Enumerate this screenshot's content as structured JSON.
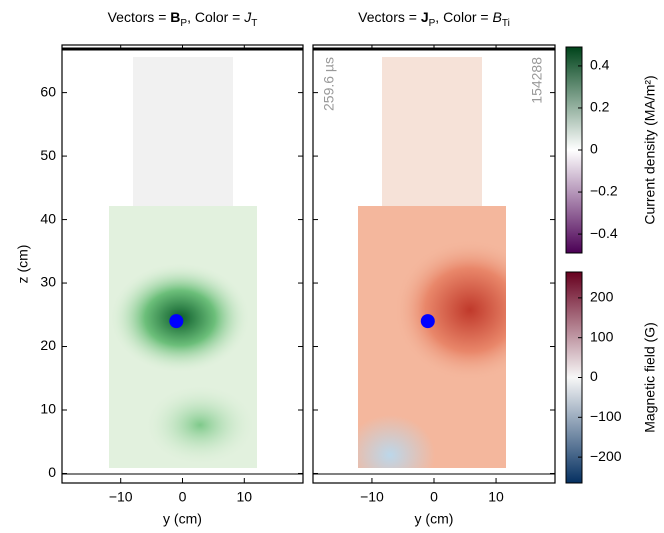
{
  "chart_data": [
    {
      "type": "scatter",
      "title_parts": [
        "Vectors = ",
        "B",
        "P",
        ", Color = ",
        "J",
        "T"
      ],
      "x_label": "y (cm)",
      "y_label": "z (cm)",
      "x": [
        -1
      ],
      "values": [
        24
      ],
      "color": "#0000ff",
      "xlim": [
        -19.5,
        19.5
      ],
      "ylim": [
        -1.5,
        67.5
      ],
      "xticks": [
        {
          "value": -10,
          "label": "−10"
        },
        0,
        10
      ],
      "yticks": [
        0,
        10,
        20,
        30,
        40,
        50,
        60
      ]
    },
    {
      "type": "scatter",
      "title_parts": [
        "Vectors = ",
        "J",
        "P",
        ", Color = ",
        "B",
        "Ti"
      ],
      "x_label": "y (cm)",
      "annotations": [
        "259.6 µs",
        "154288"
      ],
      "x": [
        -1
      ],
      "values": [
        24
      ],
      "color": "#0000ff",
      "xlim": [
        -19.5,
        19.5
      ],
      "ylim": [
        -1.5,
        67.5
      ],
      "xticks": [
        {
          "value": -10,
          "label": "−10"
        },
        0,
        10
      ],
      "yticks": [
        0,
        10,
        20,
        30,
        40,
        50,
        60
      ]
    },
    {
      "type": "colorbar",
      "label": "Current density (MA/m²)",
      "ylim": [
        -0.49,
        0.49
      ],
      "yticks": [
        {
          "value": -0.4,
          "label": "−0.4"
        },
        {
          "value": -0.2,
          "label": "−0.2"
        },
        0,
        0.2,
        0.4
      ],
      "colors": [
        "#4b0055",
        "#ffffff",
        "#00441b"
      ]
    },
    {
      "type": "colorbar",
      "label": "Magnetic field (G)",
      "ylim": [
        -265,
        265
      ],
      "yticks": [
        {
          "value": -200,
          "label": "−200"
        },
        {
          "value": -100,
          "label": "−100"
        },
        0,
        100,
        200
      ],
      "colors": [
        "#053061",
        "#f7f7f7",
        "#67001f"
      ]
    }
  ]
}
